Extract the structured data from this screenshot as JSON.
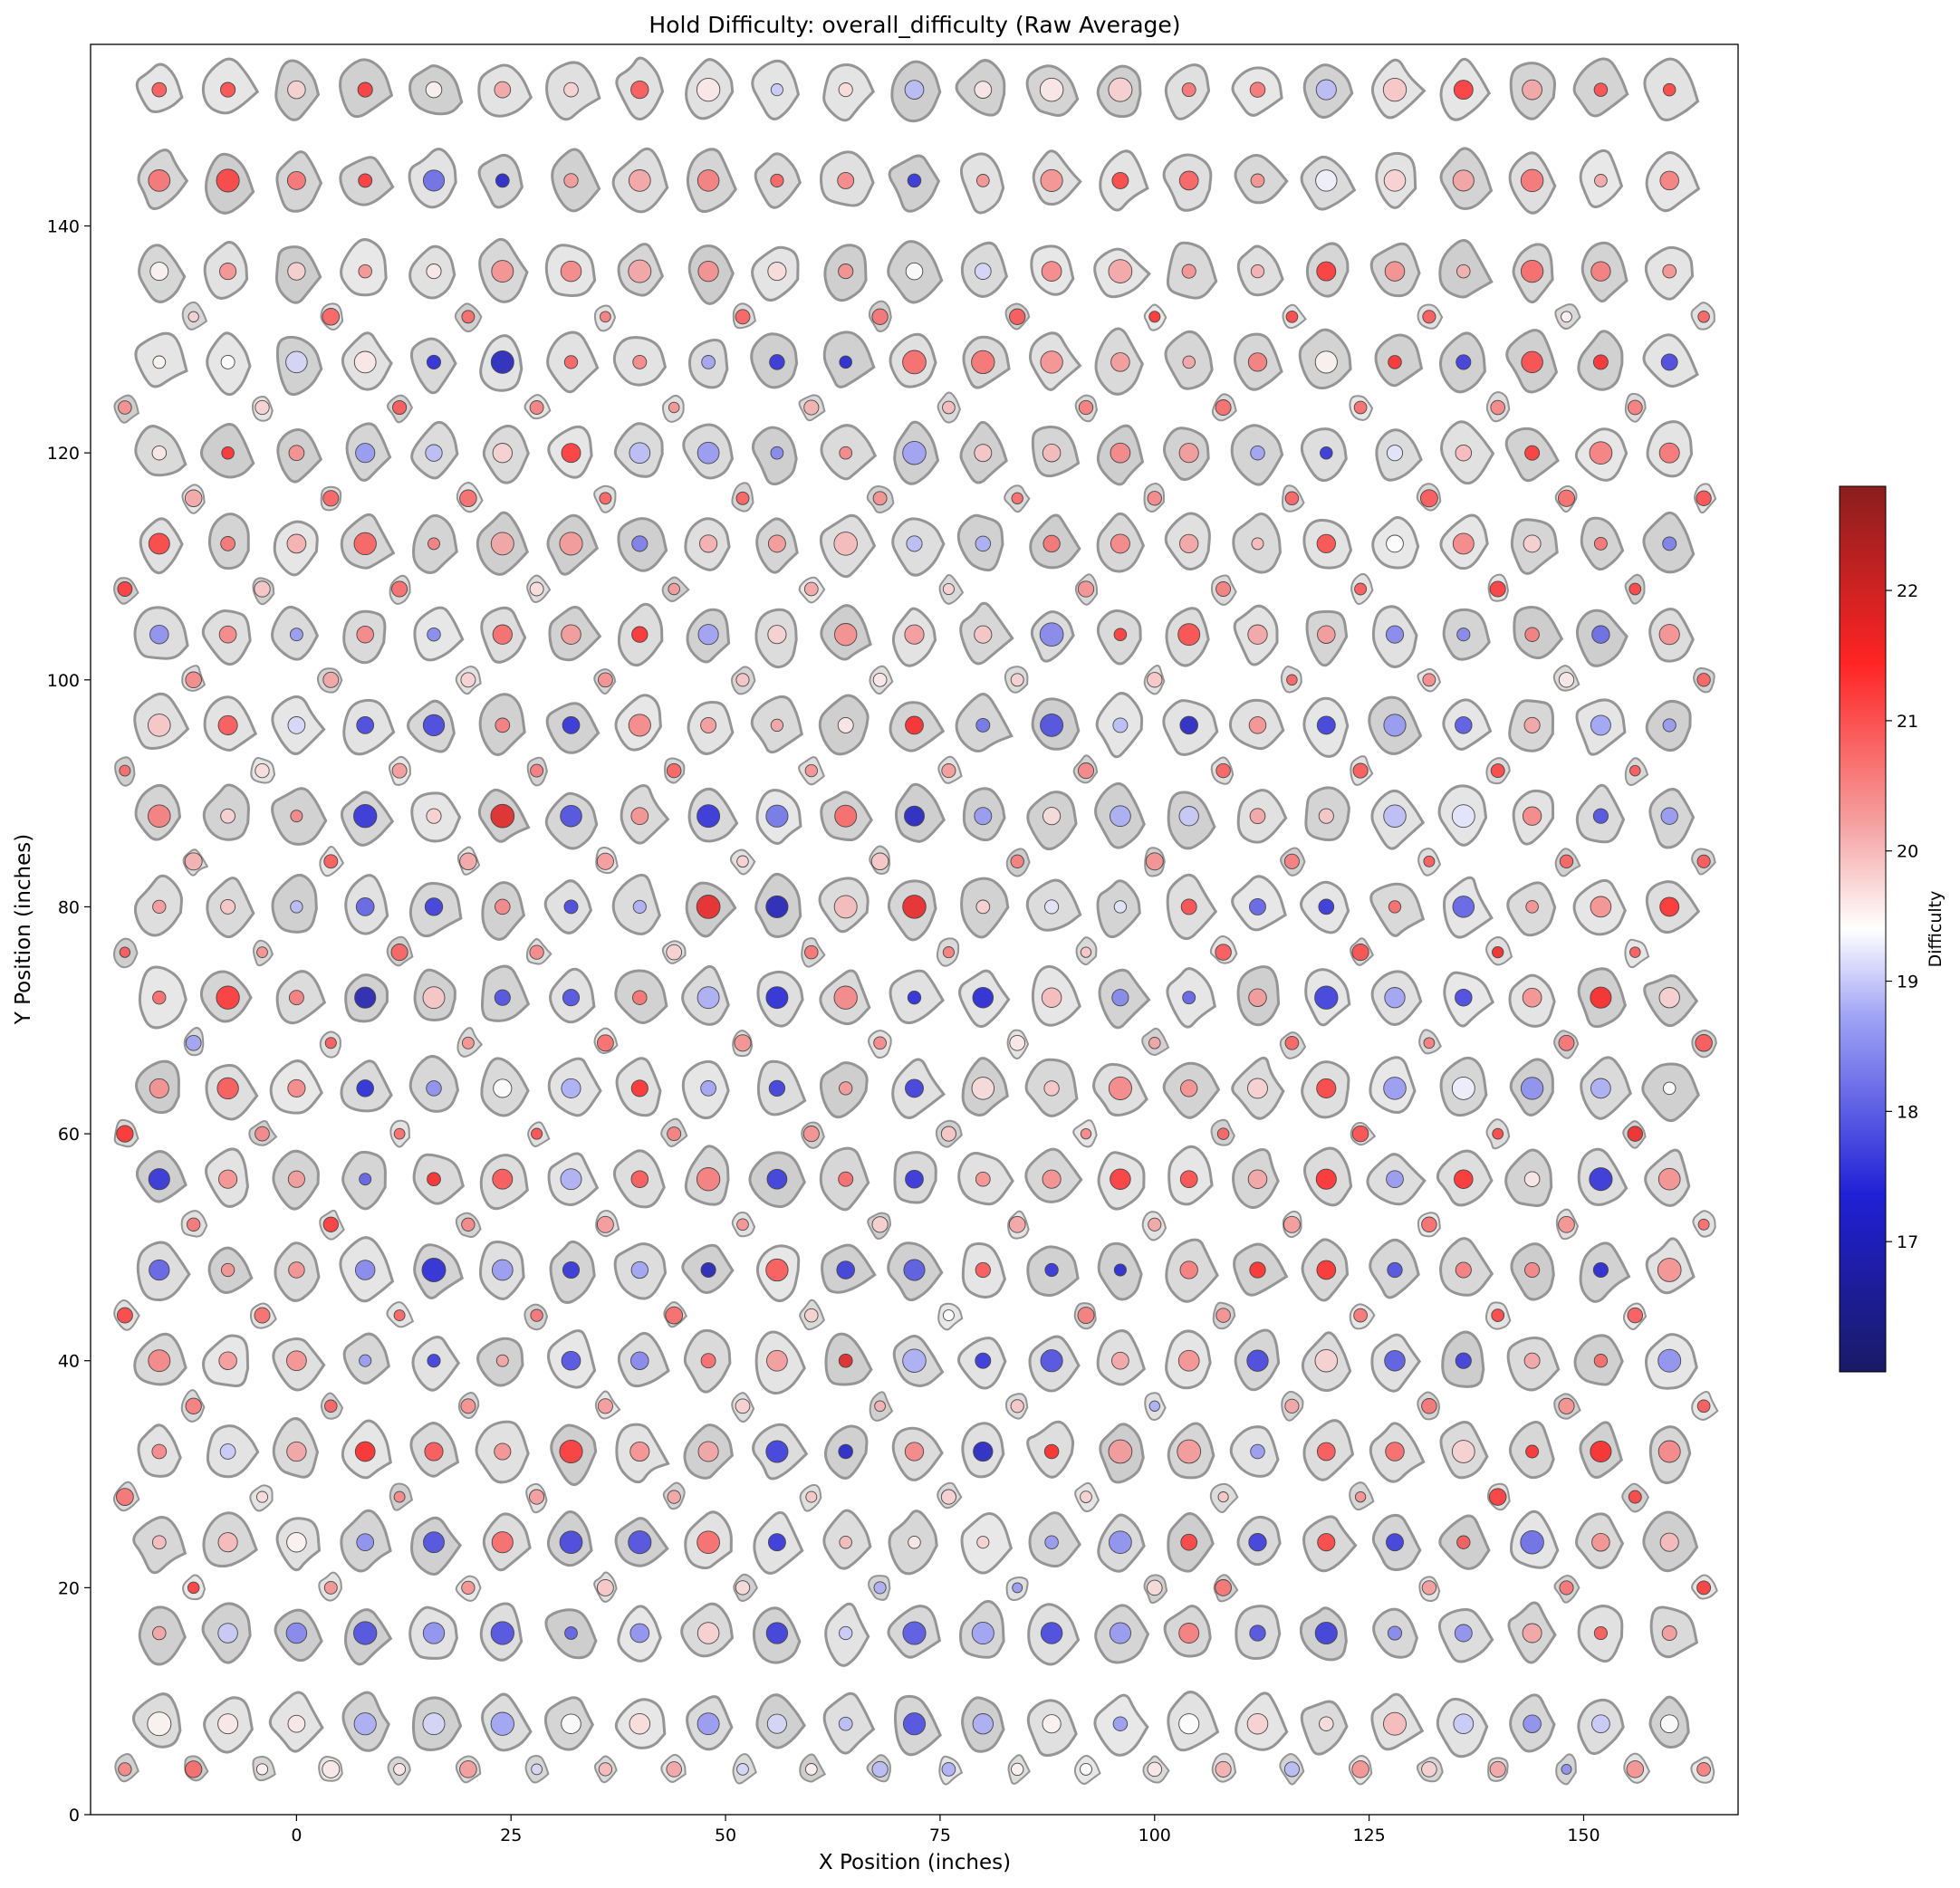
{
  "chart_data": {
    "type": "scatter",
    "title": "Hold Difficulty: overall_difficulty (Raw Average)",
    "xlabel": "X Position (inches)",
    "ylabel": "Y Position (inches)",
    "xlim": [
      -24,
      168
    ],
    "ylim": [
      0,
      156
    ],
    "x_ticks": [
      0,
      25,
      50,
      75,
      100,
      125,
      150
    ],
    "y_ticks": [
      0,
      20,
      40,
      60,
      80,
      100,
      120,
      140
    ],
    "grid": false,
    "colorbar": {
      "label": "Difficulty",
      "colormap": "seismic",
      "range": [
        16.0,
        22.8
      ],
      "ticks": [
        17,
        18,
        19,
        20,
        21,
        22
      ]
    },
    "background_image": "grey climbing-hold pictures behind every point",
    "point_size_encoding": "marker size varies with number of uses",
    "grid_layout": {
      "main_x": [
        -16,
        -8,
        0,
        8,
        16,
        24,
        32,
        40,
        48,
        56,
        64,
        72,
        80,
        88,
        96,
        104,
        112,
        120,
        128,
        136,
        144,
        152,
        160
      ],
      "main_y": [
        8,
        16,
        24,
        32,
        40,
        48,
        56,
        64,
        72,
        80,
        88,
        96,
        104,
        112,
        120,
        128,
        136,
        144,
        152
      ],
      "aux_x": [
        -20,
        -12,
        -4,
        4,
        12,
        20,
        28,
        36,
        44,
        52,
        60,
        68,
        76,
        84,
        92,
        100,
        108,
        116,
        124,
        132,
        140,
        148,
        156,
        164
      ],
      "aux_y": [
        4,
        20,
        28,
        36,
        44,
        52,
        60,
        68,
        76,
        84,
        92,
        100,
        108,
        116,
        124,
        132
      ]
    },
    "difficulty_main": [
      [
        19.5,
        19.6,
        19.6,
        18.8,
        19.1,
        18.7,
        19.4,
        19.7,
        18.6,
        19.1,
        18.9,
        17.8,
        18.8,
        19.5,
        18.6,
        19.4,
        19.8,
        19.7,
        20.0,
        19.0,
        18.5,
        19.0,
        19.4
      ],
      [
        20.2,
        19.0,
        18.4,
        17.8,
        18.5,
        17.8,
        18.0,
        18.5,
        19.8,
        17.6,
        19.0,
        17.9,
        18.7,
        17.7,
        18.6,
        20.6,
        17.8,
        17.6,
        18.4,
        18.5,
        20.2,
        21.0,
        20.3
      ],
      [
        20.0,
        20.0,
        19.5,
        18.5,
        17.8,
        20.8,
        17.7,
        17.8,
        20.8,
        17.5,
        20.0,
        19.6,
        19.8,
        18.6,
        18.5,
        21.2,
        17.6,
        21.2,
        17.6,
        21.0,
        18.1,
        20.4,
        20.0
      ],
      [
        20.5,
        19.0,
        20.2,
        21.5,
        21.0,
        20.4,
        21.3,
        20.4,
        20.2,
        17.6,
        17.2,
        20.5,
        17.1,
        21.5,
        20.3,
        20.3,
        18.6,
        21.0,
        20.8,
        19.8,
        21.4,
        21.5,
        20.5
      ],
      [
        20.5,
        20.3,
        20.4,
        18.6,
        17.6,
        20.2,
        17.8,
        18.4,
        20.8,
        20.3,
        21.8,
        18.8,
        17.5,
        17.8,
        20.2,
        20.4,
        17.7,
        19.8,
        17.9,
        17.6,
        20.2,
        20.8,
        18.5
      ],
      [
        18.0,
        20.4,
        20.4,
        18.4,
        17.4,
        18.6,
        17.5,
        18.7,
        17.0,
        21.0,
        17.6,
        17.9,
        21.0,
        17.5,
        17.3,
        20.6,
        21.4,
        21.4,
        17.8,
        20.6,
        20.5,
        17.3,
        20.4
      ],
      [
        17.5,
        20.4,
        20.3,
        18.0,
        21.5,
        21.0,
        18.8,
        21.0,
        20.6,
        17.6,
        20.8,
        17.5,
        20.4,
        20.4,
        21.3,
        21.1,
        20.2,
        21.4,
        18.6,
        21.4,
        19.6,
        17.5,
        20.4
      ],
      [
        20.4,
        21.0,
        20.5,
        17.4,
        18.5,
        19.4,
        18.8,
        21.4,
        18.7,
        17.6,
        20.3,
        17.6,
        19.7,
        19.9,
        20.5,
        20.4,
        19.8,
        21.2,
        18.6,
        19.3,
        18.5,
        18.8,
        19.4
      ],
      [
        20.8,
        21.3,
        20.6,
        16.9,
        19.9,
        17.8,
        17.8,
        20.7,
        18.8,
        17.4,
        20.5,
        17.4,
        17.3,
        20.0,
        18.4,
        18.0,
        20.3,
        17.6,
        18.7,
        17.7,
        20.4,
        21.5,
        19.8
      ],
      [
        20.3,
        19.9,
        18.9,
        18.0,
        17.6,
        20.5,
        17.7,
        18.8,
        21.7,
        17.0,
        20.0,
        21.7,
        19.8,
        19.2,
        19.2,
        21.1,
        18.0,
        17.5,
        20.8,
        18.0,
        20.4,
        20.4,
        21.4
      ],
      [
        20.6,
        19.8,
        20.5,
        17.5,
        19.8,
        21.8,
        17.8,
        20.4,
        17.5,
        18.2,
        20.8,
        17.1,
        18.6,
        19.7,
        18.8,
        19.0,
        20.2,
        19.9,
        18.9,
        19.2,
        20.5,
        17.8,
        18.6
      ],
      [
        19.9,
        21.0,
        19.1,
        17.7,
        17.7,
        20.6,
        17.5,
        20.5,
        20.3,
        20.2,
        19.6,
        21.5,
        18.2,
        17.8,
        18.9,
        17.1,
        20.4,
        17.6,
        18.6,
        17.9,
        20.2,
        18.7,
        18.6
      ],
      [
        18.5,
        20.5,
        18.6,
        20.5,
        18.4,
        20.8,
        20.3,
        21.4,
        18.7,
        19.8,
        20.4,
        20.3,
        19.9,
        18.4,
        21.3,
        21.1,
        20.2,
        20.3,
        18.4,
        18.4,
        20.6,
        18.1,
        20.4
      ],
      [
        21.2,
        20.7,
        20.1,
        20.9,
        20.6,
        20.2,
        20.3,
        18.3,
        20.1,
        20.3,
        20.0,
        18.9,
        18.8,
        20.7,
        20.5,
        20.2,
        20.0,
        21.1,
        19.4,
        20.5,
        19.8,
        20.7,
        18.3
      ],
      [
        19.6,
        21.4,
        20.4,
        18.6,
        18.9,
        19.8,
        21.3,
        18.9,
        18.6,
        18.4,
        20.5,
        18.7,
        19.9,
        20.0,
        20.5,
        20.3,
        18.7,
        17.5,
        19.2,
        20.0,
        21.3,
        20.6,
        20.7
      ],
      [
        19.5,
        19.4,
        19.1,
        19.6,
        17.4,
        17.0,
        20.9,
        20.5,
        18.7,
        17.5,
        17.3,
        20.8,
        20.7,
        20.4,
        20.3,
        20.2,
        20.6,
        19.5,
        21.4,
        17.6,
        21.1,
        21.4,
        17.7
      ],
      [
        19.5,
        20.4,
        19.8,
        20.4,
        19.6,
        20.4,
        20.5,
        20.2,
        20.4,
        19.7,
        20.4,
        19.4,
        19.1,
        20.5,
        20.2,
        20.4,
        20.1,
        21.3,
        20.4,
        20.1,
        20.8,
        20.6,
        20.4
      ],
      [
        20.7,
        21.2,
        20.7,
        21.3,
        18.1,
        17.2,
        20.3,
        20.2,
        20.6,
        20.9,
        20.5,
        17.5,
        20.4,
        20.4,
        21.2,
        20.9,
        20.4,
        19.3,
        19.8,
        20.2,
        20.7,
        20.2,
        20.6
      ],
      [
        21.0,
        21.1,
        19.8,
        21.3,
        19.5,
        20.2,
        19.8,
        21.0,
        19.6,
        19.0,
        19.7,
        18.9,
        19.6,
        19.6,
        19.8,
        20.7,
        20.7,
        18.9,
        19.9,
        21.3,
        20.2,
        21.1,
        21.2
      ]
    ],
    "difficulty_aux": [
      [
        20.5,
        20.8,
        19.5,
        19.6,
        19.6,
        20.3,
        19.1,
        20.0,
        20.2,
        19.1,
        19.5,
        18.9,
        18.8,
        19.5,
        19.4,
        19.6,
        20.1,
        18.9,
        20.4,
        19.8,
        20.2,
        18.5,
        20.4,
        20.6
      ],
      [
        null,
        21.3,
        null,
        20.4,
        null,
        20.4,
        null,
        19.9,
        null,
        19.7,
        null,
        18.8,
        null,
        18.6,
        null,
        19.7,
        20.7,
        null,
        null,
        20.3,
        null,
        20.7,
        null,
        21.3
      ],
      [
        20.7,
        null,
        19.7,
        null,
        20.5,
        null,
        20.3,
        null,
        20.2,
        null,
        19.9,
        null,
        19.8,
        null,
        19.8,
        null,
        19.9,
        null,
        20.4,
        null,
        21.3,
        null,
        21.2,
        null
      ],
      [
        null,
        20.6,
        null,
        20.9,
        null,
        20.4,
        null,
        20.3,
        null,
        19.8,
        null,
        20.1,
        null,
        19.9,
        null,
        18.8,
        null,
        20.2,
        null,
        20.7,
        null,
        20.4,
        null,
        21.0
      ],
      [
        21.2,
        null,
        20.8,
        null,
        20.9,
        null,
        20.7,
        null,
        20.8,
        null,
        19.8,
        null,
        19.4,
        null,
        20.6,
        null,
        20.4,
        null,
        20.7,
        null,
        21.2,
        null,
        21.0,
        null
      ],
      [
        null,
        20.7,
        null,
        21.3,
        null,
        20.5,
        null,
        20.3,
        null,
        20.4,
        null,
        19.8,
        null,
        20.2,
        null,
        20.2,
        null,
        20.3,
        null,
        20.8,
        null,
        20.4,
        null,
        20.8
      ],
      [
        21.4,
        null,
        20.5,
        null,
        20.8,
        null,
        21.1,
        null,
        20.6,
        null,
        20.4,
        null,
        19.9,
        null,
        20.5,
        null,
        20.9,
        null,
        21.1,
        null,
        21.2,
        null,
        21.6,
        null
      ],
      [
        null,
        18.7,
        null,
        21.0,
        null,
        20.4,
        null,
        20.8,
        null,
        20.4,
        null,
        20.5,
        null,
        19.6,
        null,
        20.2,
        null,
        20.9,
        null,
        20.6,
        null,
        20.7,
        null,
        21.0
      ],
      [
        21.0,
        null,
        20.4,
        null,
        20.9,
        null,
        20.5,
        null,
        19.8,
        null,
        20.7,
        null,
        20.6,
        null,
        19.9,
        null,
        21.0,
        null,
        21.1,
        null,
        21.6,
        null,
        21.0,
        null
      ],
      [
        null,
        20.1,
        null,
        21.0,
        null,
        20.2,
        null,
        20.3,
        null,
        19.8,
        null,
        19.9,
        null,
        20.6,
        null,
        20.4,
        null,
        20.6,
        null,
        21.0,
        null,
        20.9,
        null,
        21.0
      ],
      [
        20.8,
        null,
        19.7,
        null,
        20.3,
        null,
        20.6,
        null,
        20.9,
        null,
        20.4,
        null,
        20.3,
        null,
        20.5,
        null,
        20.9,
        null,
        21.0,
        null,
        21.2,
        null,
        21.0,
        null
      ],
      [
        null,
        20.5,
        null,
        20.2,
        null,
        19.8,
        null,
        20.4,
        null,
        19.9,
        null,
        19.6,
        null,
        19.8,
        null,
        19.9,
        null,
        20.9,
        null,
        20.5,
        null,
        19.6,
        null,
        20.9
      ],
      [
        21.3,
        null,
        19.9,
        null,
        20.8,
        null,
        19.7,
        null,
        20.3,
        null,
        20.2,
        null,
        19.8,
        null,
        20.4,
        null,
        20.6,
        null,
        21.0,
        null,
        21.3,
        null,
        21.2,
        null
      ],
      [
        null,
        20.2,
        null,
        20.9,
        null,
        20.8,
        null,
        20.9,
        null,
        20.9,
        null,
        20.4,
        null,
        20.8,
        null,
        20.5,
        null,
        20.9,
        null,
        21.0,
        null,
        20.8,
        null,
        21.1
      ],
      [
        20.4,
        null,
        19.8,
        null,
        21.0,
        null,
        20.6,
        null,
        20.4,
        null,
        20.1,
        null,
        20.0,
        null,
        20.6,
        null,
        20.8,
        null,
        20.8,
        null,
        20.5,
        null,
        20.6,
        null
      ],
      [
        null,
        19.8,
        null,
        20.9,
        null,
        20.8,
        null,
        20.6,
        null,
        20.9,
        null,
        20.7,
        null,
        21.0,
        null,
        21.4,
        null,
        21.2,
        null,
        21.0,
        null,
        19.5,
        null,
        20.9
      ]
    ]
  }
}
